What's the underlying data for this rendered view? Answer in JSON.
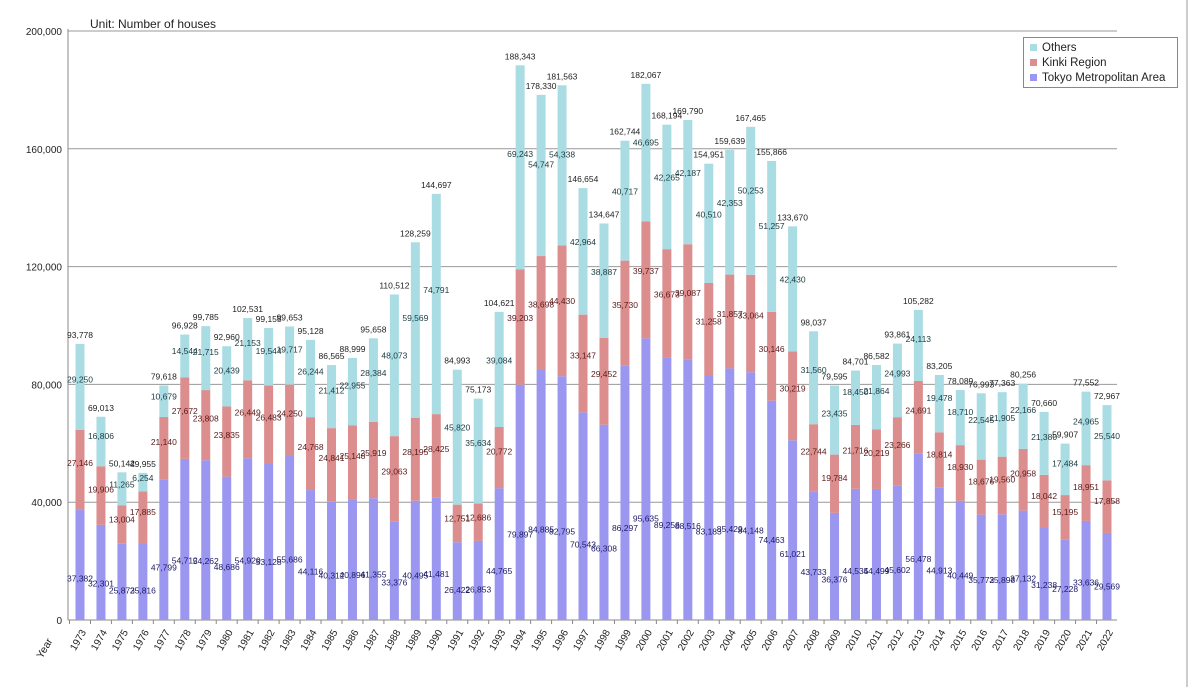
{
  "chart_data": {
    "type": "bar",
    "stacked": true,
    "title": "Unit: Number of houses",
    "xlabel": "Year",
    "ylabel": "",
    "ylim": [
      0,
      200000
    ],
    "yticks": [
      "0",
      "40,000",
      "80,000",
      "120,000",
      "160,000",
      "200,000"
    ],
    "ytick_values": [
      0,
      40000,
      80000,
      120000,
      160000,
      200000
    ],
    "grid": true,
    "legend_position": "top-right",
    "categories": [
      "1973",
      "1974",
      "1975",
      "1976",
      "1977",
      "1978",
      "1979",
      "1980",
      "1981",
      "1982",
      "1983",
      "1984",
      "1985",
      "1986",
      "1987",
      "1988",
      "1989",
      "1990",
      "1991",
      "1992",
      "1993",
      "1994",
      "1995",
      "1996",
      "1997",
      "1998",
      "1999",
      "2000",
      "2001",
      "2002",
      "2003",
      "2004",
      "2005",
      "2006",
      "2007",
      "2008",
      "2009",
      "2010",
      "2011",
      "2012",
      "2013",
      "2014",
      "2015",
      "2016",
      "2017",
      "2018",
      "2019",
      "2020",
      "2021",
      "2022"
    ],
    "series": [
      {
        "name": "Tokyo Metropolitan Area",
        "color": "#9b96f0",
        "values": [
          37382,
          32301,
          25873,
          25816,
          47799,
          54712,
          54262,
          48686,
          54929,
          53128,
          55686,
          44116,
          40312,
          40896,
          41355,
          33376,
          40495,
          41481,
          26422,
          26853,
          44765,
          79897,
          84885,
          82795,
          70543,
          66308,
          86297,
          95635,
          89256,
          88516,
          83183,
          85429,
          84148,
          74463,
          61021,
          43733,
          36376,
          44535,
          44499,
          45602,
          56478,
          44913,
          40449,
          35772,
          35898,
          37132,
          31238,
          27228,
          33636,
          29569
        ]
      },
      {
        "name": "Kinki Region",
        "color": "#dc8d8d",
        "values": [
          27146,
          19906,
          13004,
          17885,
          21140,
          27672,
          23808,
          23835,
          26449,
          26483,
          24250,
          24768,
          24841,
          25148,
          25919,
          29063,
          28195,
          28425,
          12751,
          12686,
          20772,
          39203,
          38698,
          44430,
          33147,
          29452,
          35730,
          39737,
          36673,
          39087,
          31258,
          31857,
          33064,
          30146,
          30219,
          22744,
          19784,
          21716,
          20219,
          23266,
          24691,
          18814,
          18930,
          18676,
          19560,
          20958,
          18042,
          15195,
          18951,
          17858
        ]
      },
      {
        "name": "Others",
        "color": "#aadce4",
        "values": [
          29250,
          16806,
          11265,
          6254,
          10679,
          14544,
          21715,
          20439,
          21153,
          19544,
          19717,
          26244,
          21412,
          22955,
          28384,
          48073,
          59569,
          74791,
          45820,
          35634,
          39084,
          69243,
          54747,
          54338,
          42964,
          38887,
          40717,
          46695,
          42265,
          42187,
          40510,
          42353,
          50253,
          51257,
          42430,
          31560,
          23435,
          18450,
          21864,
          24993,
          24113,
          19478,
          18710,
          22545,
          21905,
          22166,
          21380,
          17484,
          24965,
          25540
        ]
      }
    ],
    "totals": [
      93778,
      69013,
      50142,
      49955,
      79618,
      96928,
      99785,
      92960,
      102531,
      99155,
      99653,
      95128,
      86565,
      88999,
      95658,
      110512,
      128259,
      144697,
      84993,
      75173,
      104621,
      188343,
      178330,
      181563,
      146654,
      134647,
      162744,
      182067,
      168194,
      169790,
      154951,
      159639,
      167465,
      155866,
      133670,
      98037,
      79595,
      84701,
      86582,
      93861,
      105282,
      83205,
      78089,
      76993,
      77363,
      80256,
      70660,
      59907,
      77552,
      72967
    ]
  }
}
